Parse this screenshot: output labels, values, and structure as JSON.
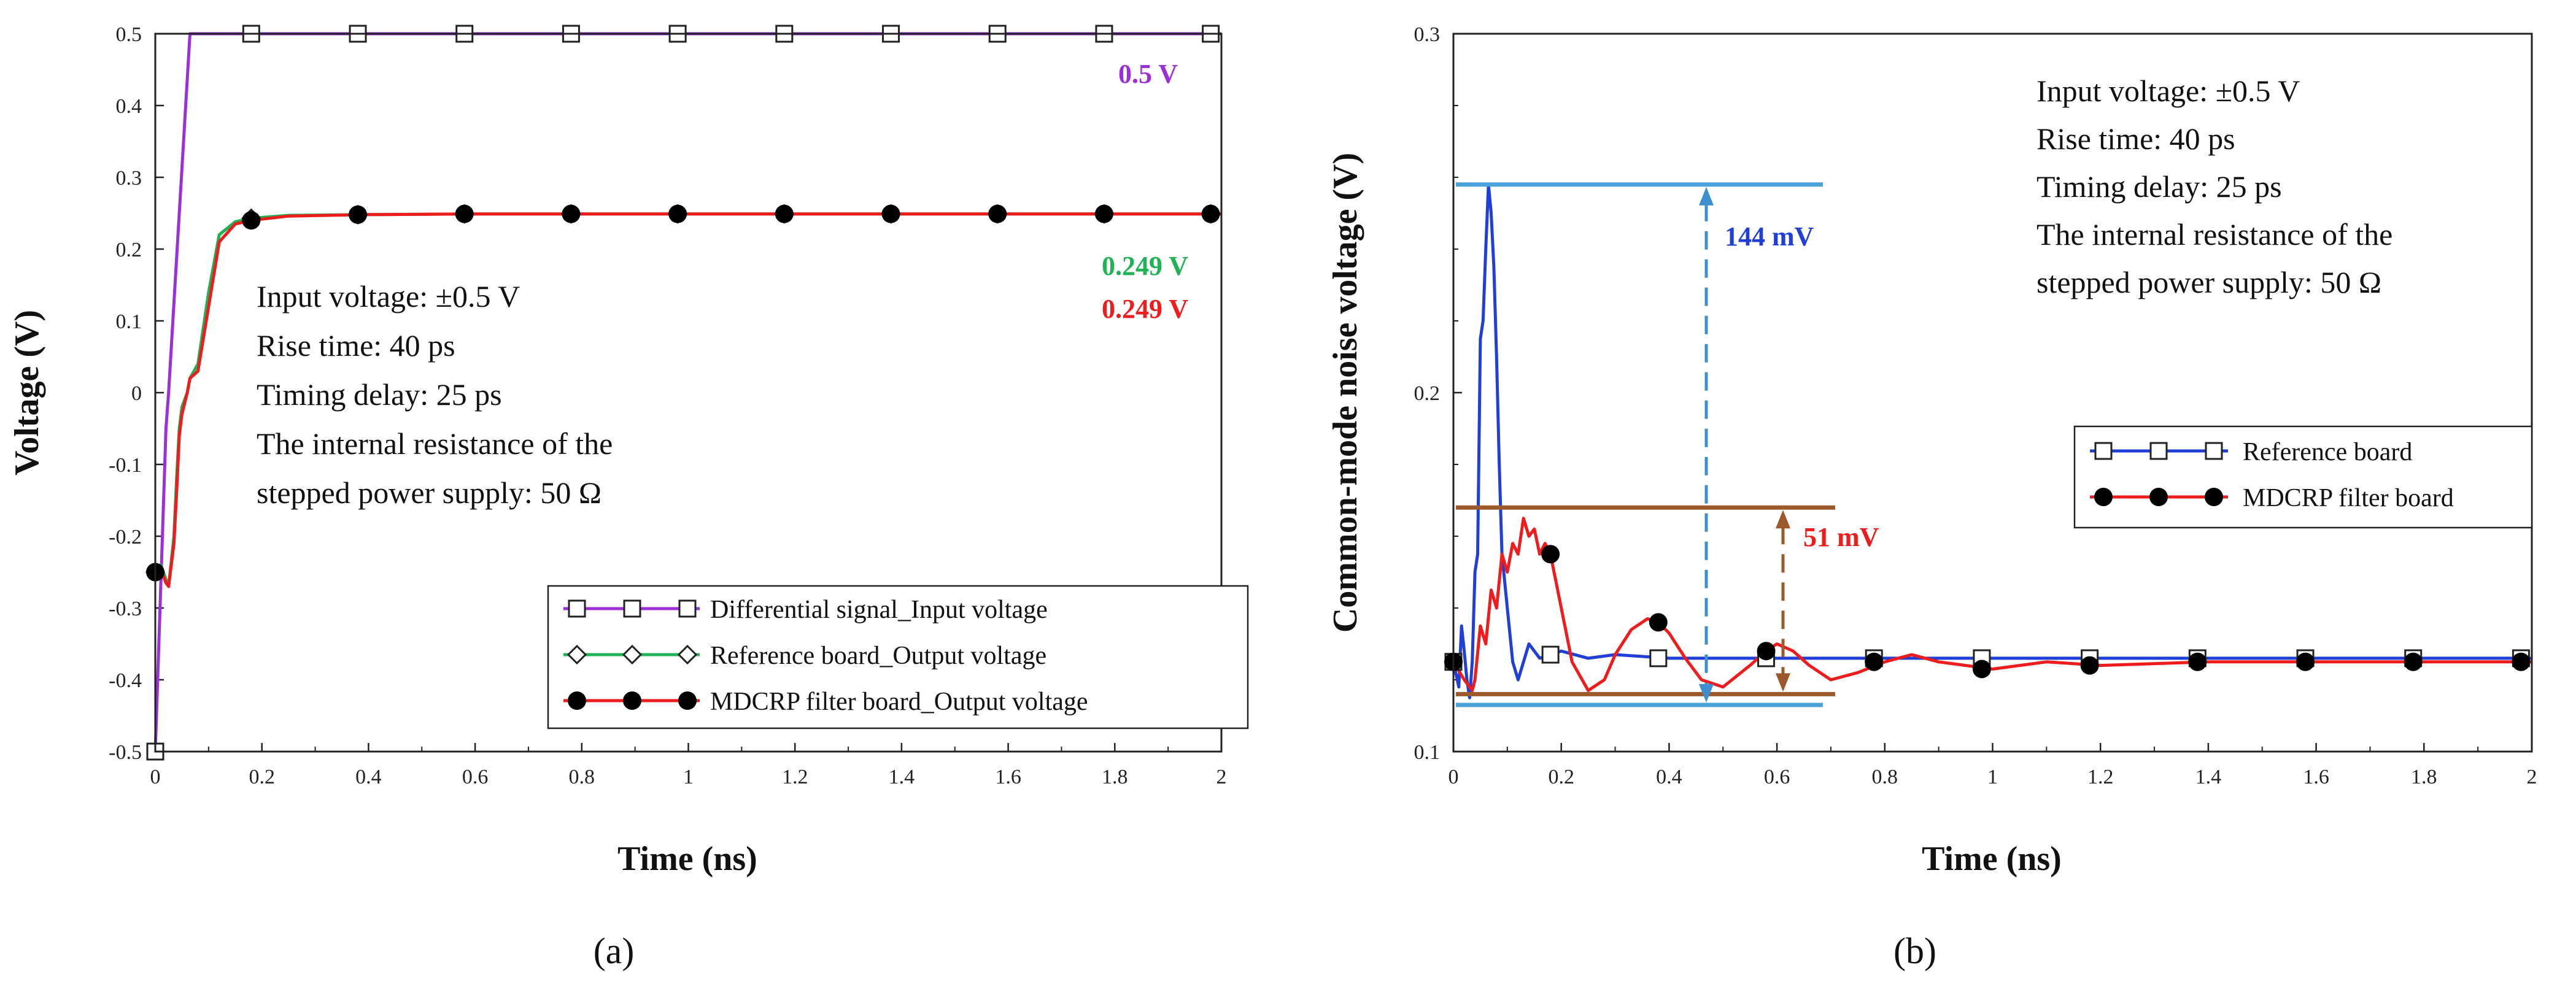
{
  "chart_data": [
    {
      "panel": "(a)",
      "type": "line",
      "xlabel": "Time (ns)",
      "ylabel": "Voltage (V)",
      "xlim": [
        0,
        2
      ],
      "ylim": [
        -0.5,
        0.5
      ],
      "xticks": [
        "0",
        "0.2",
        "0.4",
        "0.6",
        "0.8",
        "1",
        "1.2",
        "1.4",
        "1.6",
        "1.8",
        "2"
      ],
      "yticks": [
        "-0.5",
        "-0.4",
        "-0.3",
        "-0.2",
        "-0.1",
        "0",
        "0.1",
        "0.2",
        "0.3",
        "0.4",
        "0.5"
      ],
      "annotation": [
        "Input voltage:  ±0.5 V",
        "Rise time: 40 ps",
        "Timing delay: 25 ps",
        "The internal resistance of the",
        "stepped power supply: 50 Ω"
      ],
      "value_labels": [
        {
          "text": "0.5 V",
          "color": "#9b30d9"
        },
        {
          "text": "0.249 V",
          "color": "#1fb356"
        },
        {
          "text": "0.249 V",
          "color": "#ee1c1c"
        }
      ],
      "series": [
        {
          "name": "Differential signal_Input voltage",
          "color": "#9b30d9",
          "marker": "square",
          "x": [
            0,
            0.02,
            0.025,
            0.065,
            0.2,
            0.4,
            0.6,
            0.8,
            1.0,
            1.2,
            1.4,
            1.6,
            1.8,
            2.0
          ],
          "y": [
            -0.5,
            -0.05,
            0,
            0.5,
            0.5,
            0.5,
            0.5,
            0.5,
            0.5,
            0.5,
            0.5,
            0.5,
            0.5,
            0.5
          ],
          "marker_x": [
            0,
            0.18,
            0.38,
            0.58,
            0.78,
            0.98,
            1.18,
            1.38,
            1.58,
            1.78,
            1.98
          ],
          "marker_y": [
            -0.5,
            0.5,
            0.5,
            0.5,
            0.5,
            0.5,
            0.5,
            0.5,
            0.5,
            0.5,
            0.5
          ]
        },
        {
          "name": "Reference board_Output voltage",
          "color": "#1fb356",
          "marker": "diamond",
          "x": [
            0,
            0.01,
            0.02,
            0.025,
            0.035,
            0.04,
            0.045,
            0.05,
            0.06,
            0.065,
            0.08,
            0.1,
            0.12,
            0.15,
            0.18,
            0.25,
            0.4,
            0.6,
            1.0,
            1.5,
            2.0
          ],
          "y": [
            -0.25,
            -0.24,
            -0.26,
            -0.27,
            -0.2,
            -0.12,
            -0.05,
            -0.02,
            0.0,
            0.02,
            0.04,
            0.14,
            0.22,
            0.238,
            0.243,
            0.247,
            0.248,
            0.249,
            0.249,
            0.249,
            0.249
          ],
          "marker_x": [
            0,
            0.18,
            0.38,
            0.58,
            0.78,
            0.98,
            1.18,
            1.38,
            1.58,
            1.78,
            1.98
          ],
          "marker_y": [
            -0.25,
            0.243,
            0.248,
            0.249,
            0.249,
            0.249,
            0.249,
            0.249,
            0.249,
            0.249,
            0.249
          ]
        },
        {
          "name": "MDCRP filter board_Output voltage",
          "color": "#ee1c1c",
          "marker": "circle",
          "x": [
            0,
            0.01,
            0.02,
            0.025,
            0.035,
            0.04,
            0.045,
            0.05,
            0.06,
            0.065,
            0.08,
            0.1,
            0.12,
            0.15,
            0.18,
            0.25,
            0.4,
            0.6,
            1.0,
            1.5,
            2.0
          ],
          "y": [
            -0.25,
            -0.245,
            -0.265,
            -0.27,
            -0.21,
            -0.14,
            -0.06,
            -0.03,
            0.0,
            0.02,
            0.03,
            0.12,
            0.21,
            0.235,
            0.24,
            0.246,
            0.248,
            0.249,
            0.249,
            0.249,
            0.249
          ],
          "marker_x": [
            0,
            0.18,
            0.38,
            0.58,
            0.78,
            0.98,
            1.18,
            1.38,
            1.58,
            1.78,
            1.98
          ],
          "marker_y": [
            -0.25,
            0.24,
            0.248,
            0.249,
            0.249,
            0.249,
            0.249,
            0.249,
            0.249,
            0.249,
            0.249
          ]
        }
      ]
    },
    {
      "panel": "(b)",
      "type": "line",
      "xlabel": "Time (ns)",
      "ylabel": "Common-mode noise voltage (V)",
      "xlim": [
        0,
        2
      ],
      "ylim": [
        0.1,
        0.3
      ],
      "xticks": [
        "0",
        "0.2",
        "0.4",
        "0.6",
        "0.8",
        "1",
        "1.2",
        "1.4",
        "1.6",
        "1.8",
        "2"
      ],
      "yticks": [
        "0.1",
        "0.2",
        "0.3"
      ],
      "annotation": [
        "Input voltage:  ±0.5 V",
        "Rise time: 40 ps",
        "Timing delay: 25 ps",
        "The internal resistance of the",
        "stepped power supply: 50 Ω"
      ],
      "measurements": [
        {
          "text": "144 mV",
          "color": "#1f3fd6",
          "low": 0.113,
          "high": 0.258
        },
        {
          "text": "51 mV",
          "color": "#ee1c1c",
          "low": 0.116,
          "high": 0.168
        }
      ],
      "series": [
        {
          "name": "Reference board",
          "color": "#1f3fd6",
          "marker": "square",
          "x": [
            0,
            0.01,
            0.015,
            0.02,
            0.025,
            0.03,
            0.035,
            0.04,
            0.045,
            0.05,
            0.055,
            0.06,
            0.065,
            0.07,
            0.075,
            0.08,
            0.085,
            0.09,
            0.1,
            0.11,
            0.12,
            0.13,
            0.14,
            0.15,
            0.16,
            0.18,
            0.2,
            0.25,
            0.3,
            0.4,
            0.5,
            0.6,
            0.8,
            1.0,
            1.5,
            2.0
          ],
          "y": [
            0.125,
            0.118,
            0.135,
            0.128,
            0.12,
            0.115,
            0.125,
            0.15,
            0.155,
            0.215,
            0.22,
            0.24,
            0.258,
            0.25,
            0.235,
            0.21,
            0.18,
            0.155,
            0.14,
            0.125,
            0.12,
            0.125,
            0.13,
            0.128,
            0.126,
            0.127,
            0.128,
            0.126,
            0.127,
            0.126,
            0.126,
            0.126,
            0.126,
            0.126,
            0.126,
            0.126
          ],
          "marker_x": [
            0,
            0.18,
            0.38,
            0.58,
            0.78,
            0.98,
            1.18,
            1.38,
            1.58,
            1.78,
            1.98
          ],
          "marker_y": [
            0.125,
            0.127,
            0.126,
            0.126,
            0.126,
            0.126,
            0.126,
            0.126,
            0.126,
            0.126,
            0.126
          ]
        },
        {
          "name": "MDCRP filter board",
          "color": "#ee1c1c",
          "marker": "circle",
          "x": [
            0,
            0.02,
            0.035,
            0.04,
            0.05,
            0.06,
            0.07,
            0.08,
            0.09,
            0.1,
            0.11,
            0.12,
            0.13,
            0.14,
            0.15,
            0.16,
            0.17,
            0.18,
            0.2,
            0.22,
            0.25,
            0.28,
            0.3,
            0.33,
            0.36,
            0.38,
            0.4,
            0.43,
            0.46,
            0.5,
            0.55,
            0.58,
            0.6,
            0.63,
            0.66,
            0.7,
            0.75,
            0.8,
            0.85,
            0.9,
            0.95,
            1.0,
            1.1,
            1.2,
            1.4,
            1.6,
            1.8,
            2.0
          ],
          "y": [
            0.125,
            0.12,
            0.117,
            0.12,
            0.135,
            0.13,
            0.145,
            0.14,
            0.155,
            0.15,
            0.158,
            0.155,
            0.165,
            0.16,
            0.162,
            0.155,
            0.158,
            0.155,
            0.14,
            0.125,
            0.117,
            0.12,
            0.127,
            0.134,
            0.137,
            0.136,
            0.133,
            0.126,
            0.12,
            0.118,
            0.124,
            0.128,
            0.13,
            0.128,
            0.124,
            0.12,
            0.122,
            0.125,
            0.127,
            0.125,
            0.124,
            0.123,
            0.125,
            0.124,
            0.125,
            0.125,
            0.125,
            0.125
          ],
          "marker_x": [
            0,
            0.18,
            0.38,
            0.58,
            0.78,
            0.98,
            1.18,
            1.38,
            1.58,
            1.78,
            1.98
          ],
          "marker_y": [
            0.125,
            0.155,
            0.136,
            0.128,
            0.125,
            0.123,
            0.124,
            0.125,
            0.125,
            0.125,
            0.125
          ]
        }
      ]
    }
  ]
}
